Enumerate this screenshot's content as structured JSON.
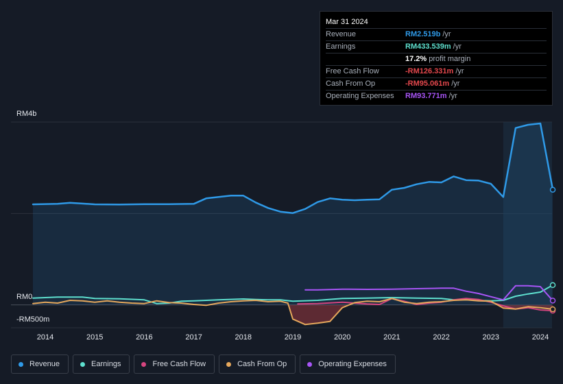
{
  "tooltip": {
    "date": "Mar 31 2024",
    "rows": [
      {
        "label": "Revenue",
        "value": "RM2.519b",
        "unit": "/yr",
        "color": "#2f9ae8"
      },
      {
        "label": "Earnings",
        "value": "RM433.539m",
        "unit": "/yr",
        "color": "#5ee0cf"
      },
      {
        "label": "",
        "value": "17.2%",
        "unit": "profit margin",
        "color": "#ffffff"
      },
      {
        "label": "Free Cash Flow",
        "value": "-RM126.331m",
        "unit": "/yr",
        "color": "#e5484d"
      },
      {
        "label": "Cash From Op",
        "value": "-RM95.061m",
        "unit": "/yr",
        "color": "#e5484d"
      },
      {
        "label": "Operating Expenses",
        "value": "RM93.771m",
        "unit": "/yr",
        "color": "#a855f7"
      }
    ]
  },
  "legend": [
    {
      "label": "Revenue",
      "color": "#2f9ae8"
    },
    {
      "label": "Earnings",
      "color": "#5ee0cf"
    },
    {
      "label": "Free Cash Flow",
      "color": "#d6457f"
    },
    {
      "label": "Cash From Op",
      "color": "#e6a85c"
    },
    {
      "label": "Operating Expenses",
      "color": "#a855f7"
    }
  ],
  "chart_data": {
    "type": "line",
    "y_unit": "RM millions",
    "ylim": [
      -500,
      4000
    ],
    "y_tick_labels": [
      "RM4b",
      "RM0",
      "-RM500m"
    ],
    "x_tick_labels": [
      "2014",
      "2015",
      "2016",
      "2017",
      "2018",
      "2019",
      "2020",
      "2021",
      "2022",
      "2023",
      "2024"
    ],
    "highlight_range": [
      2023.25,
      2024.25
    ],
    "grid": true,
    "series": [
      {
        "name": "Revenue",
        "color": "#2f9ae8",
        "x": [
          2013.75,
          2014.25,
          2014.5,
          2015.0,
          2015.5,
          2016.0,
          2016.5,
          2017.0,
          2017.25,
          2017.5,
          2017.75,
          2018.0,
          2018.25,
          2018.5,
          2018.75,
          2019.0,
          2019.25,
          2019.5,
          2019.75,
          2020.0,
          2020.25,
          2020.5,
          2020.75,
          2021.0,
          2021.25,
          2021.5,
          2021.75,
          2022.0,
          2022.25,
          2022.5,
          2022.75,
          2023.0,
          2023.25,
          2023.5,
          2023.75,
          2024.0,
          2024.25
        ],
        "values": [
          2200,
          2210,
          2235,
          2200,
          2195,
          2205,
          2205,
          2210,
          2330,
          2360,
          2390,
          2390,
          2240,
          2120,
          2040,
          2010,
          2100,
          2250,
          2330,
          2300,
          2290,
          2300,
          2310,
          2520,
          2560,
          2640,
          2690,
          2680,
          2810,
          2730,
          2720,
          2650,
          2360,
          3870,
          3940,
          3970,
          2519
        ]
      },
      {
        "name": "Earnings",
        "color": "#5ee0cf",
        "x": [
          2013.75,
          2014.25,
          2014.75,
          2015.0,
          2015.5,
          2016.0,
          2016.25,
          2016.5,
          2016.75,
          2017.0,
          2017.5,
          2018.0,
          2018.25,
          2018.5,
          2018.75,
          2019.0,
          2019.5,
          2020.0,
          2020.5,
          2021.0,
          2021.5,
          2022.0,
          2022.25,
          2022.5,
          2022.75,
          2023.0,
          2023.25,
          2023.5,
          2023.75,
          2024.0,
          2024.25
        ],
        "values": [
          150,
          170,
          170,
          140,
          135,
          110,
          30,
          40,
          80,
          90,
          110,
          130,
          120,
          110,
          110,
          80,
          100,
          140,
          150,
          160,
          150,
          140,
          110,
          110,
          100,
          90,
          100,
          190,
          240,
          280,
          433
        ]
      },
      {
        "name": "Free Cash Flow",
        "color": "#d6457f",
        "x": [
          2019.1,
          2019.5,
          2020.0,
          2020.5,
          2020.75,
          2021.0,
          2021.25,
          2021.5,
          2021.75,
          2022.0,
          2022.25,
          2022.5,
          2022.75,
          2023.0,
          2023.25,
          2023.5,
          2023.75,
          2024.0,
          2024.25
        ],
        "values": [
          20,
          30,
          60,
          20,
          10,
          140,
          80,
          10,
          40,
          60,
          110,
          140,
          120,
          60,
          -20,
          -90,
          -60,
          -110,
          -126
        ]
      },
      {
        "name": "Cash From Op",
        "color": "#e6a85c",
        "x": [
          2013.75,
          2014.0,
          2014.25,
          2014.5,
          2014.75,
          2015.0,
          2015.25,
          2015.5,
          2015.75,
          2016.0,
          2016.25,
          2016.5,
          2016.75,
          2017.0,
          2017.25,
          2017.5,
          2017.75,
          2018.0,
          2018.25,
          2018.5,
          2018.75,
          2018.9,
          2019.0,
          2019.25,
          2019.5,
          2019.75,
          2020.0,
          2020.25,
          2020.5,
          2020.75,
          2021.0,
          2021.25,
          2021.5,
          2021.75,
          2022.0,
          2022.25,
          2022.5,
          2022.75,
          2023.0,
          2023.25,
          2023.5,
          2023.75,
          2024.0,
          2024.25
        ],
        "values": [
          30,
          60,
          40,
          100,
          90,
          60,
          90,
          60,
          40,
          30,
          90,
          50,
          40,
          10,
          -10,
          40,
          70,
          90,
          100,
          70,
          80,
          40,
          -310,
          -430,
          -400,
          -360,
          -60,
          50,
          80,
          70,
          140,
          60,
          30,
          60,
          70,
          100,
          110,
          90,
          80,
          -70,
          -90,
          -40,
          -60,
          -95
        ]
      },
      {
        "name": "Operating Expenses",
        "color": "#a855f7",
        "x": [
          2019.25,
          2019.5,
          2020.0,
          2020.5,
          2021.0,
          2021.5,
          2022.0,
          2022.25,
          2022.5,
          2022.75,
          2023.0,
          2023.25,
          2023.5,
          2023.75,
          2024.0,
          2024.25
        ],
        "values": [
          330,
          330,
          345,
          340,
          345,
          355,
          365,
          365,
          300,
          250,
          180,
          110,
          420,
          420,
          400,
          94
        ]
      }
    ]
  }
}
